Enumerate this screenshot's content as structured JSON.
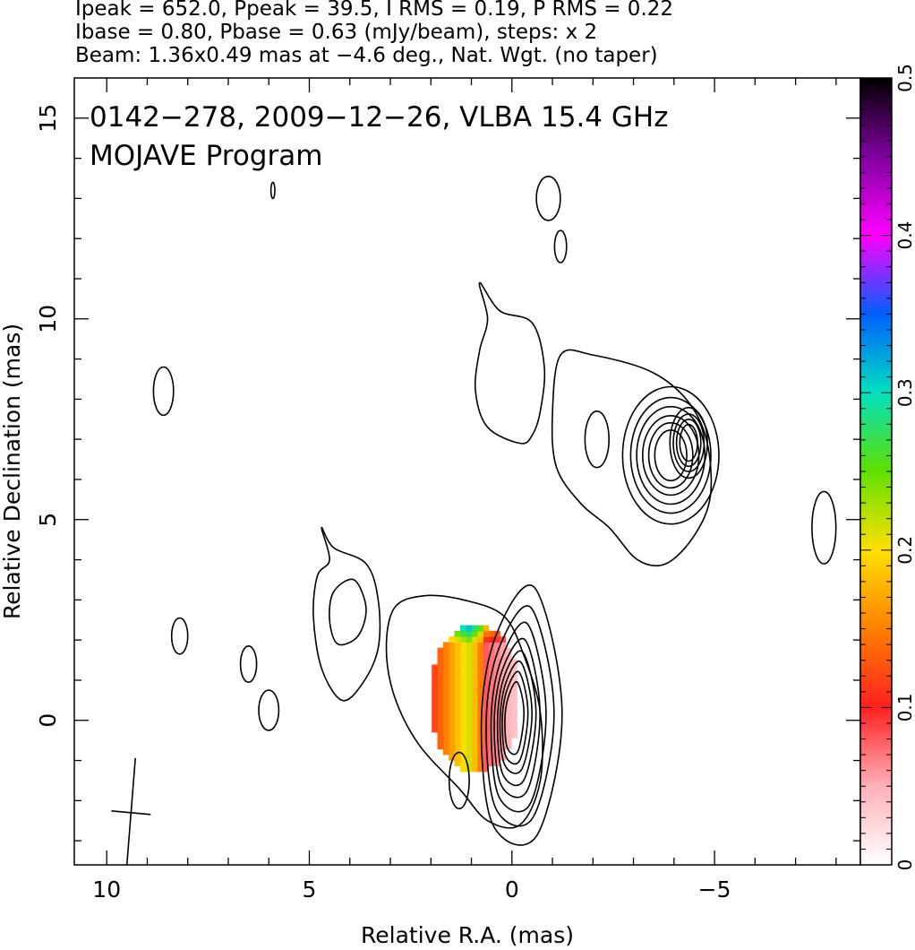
{
  "header": {
    "line1": "Ipeak = 652.0, Ppeak = 39.5, I RMS = 0.19, P RMS = 0.22",
    "line2": "Ibase = 0.80, Pbase = 0.63 (mJy/beam), steps: x 2",
    "line3": "Beam: 1.36x0.49 mas at −4.6 deg., Nat. Wgt. (no taper)"
  },
  "chart_data": {
    "type": "heatmap",
    "title": "0142−278, 2009−12−26, VLBA 15.4 GHz",
    "subtitle": "MOJAVE Program",
    "xlabel": "Relative R.A. (mas)",
    "ylabel": "Relative Declination (mas)",
    "xlim": [
      10.8,
      -8.6
    ],
    "ylim": [
      -3.6,
      16
    ],
    "x_ticks": [
      {
        "value": 10,
        "label": "10"
      },
      {
        "value": 5,
        "label": "5"
      },
      {
        "value": 0,
        "label": "0"
      },
      {
        "value": -5,
        "label": "−5"
      }
    ],
    "y_ticks": [
      {
        "value": 0,
        "label": "0"
      },
      {
        "value": 5,
        "label": "5"
      },
      {
        "value": 10,
        "label": "10"
      },
      {
        "value": 15,
        "label": "15"
      }
    ],
    "colorbar": {
      "range": [
        0,
        0.5
      ],
      "ticks": [
        {
          "value": 0,
          "label": "0"
        },
        {
          "value": 0.1,
          "label": "0.1"
        },
        {
          "value": 0.2,
          "label": "0.2"
        },
        {
          "value": 0.3,
          "label": "0.3"
        },
        {
          "value": 0.4,
          "label": "0.4"
        },
        {
          "value": 0.5,
          "label": "0.5"
        }
      ],
      "colors": [
        "#ffffff",
        "#ffb0b8",
        "#ff2020",
        "#ff8000",
        "#ffe000",
        "#60e000",
        "#00e0c0",
        "#0060ff",
        "#ff00ff",
        "#8000a0",
        "#000000"
      ]
    },
    "core": {
      "x": 0,
      "y": 0,
      "ipeak": 652.0
    },
    "jet_component": {
      "x": -3.7,
      "y": 6.6
    },
    "beam": {
      "major": 1.36,
      "minor": 0.49,
      "pa": -4.6,
      "center_x": 9.4,
      "center_y": -2.3
    },
    "contour_levels": [
      0.8,
      1.6,
      3.2,
      6.4,
      12.8,
      25.6,
      51.2,
      102.4,
      204.8,
      409.6
    ],
    "contours": [
      {
        "name": "core-outer",
        "points": [
          [
            2.9,
            2.8
          ],
          [
            2.2,
            3.1
          ],
          [
            1.2,
            3.0
          ],
          [
            0.2,
            2.6
          ],
          [
            -0.3,
            1.6
          ],
          [
            -0.7,
            0.2
          ],
          [
            -0.7,
            -1.5
          ],
          [
            -0.2,
            -2.6
          ],
          [
            0.6,
            -2.5
          ],
          [
            1.3,
            -1.7
          ],
          [
            2.3,
            -0.6
          ],
          [
            2.9,
            0.6
          ],
          [
            3.1,
            1.8
          ]
        ]
      },
      {
        "name": "west-blob",
        "points": [
          [
            -1.2,
            9.1
          ],
          [
            -2.0,
            9.1
          ],
          [
            -3.4,
            8.7
          ],
          [
            -4.3,
            8.0
          ],
          [
            -4.8,
            7.0
          ],
          [
            -4.9,
            5.6
          ],
          [
            -4.5,
            4.6
          ],
          [
            -3.8,
            3.9
          ],
          [
            -3.1,
            4.0
          ],
          [
            -2.4,
            4.8
          ],
          [
            -1.7,
            5.4
          ],
          [
            -1.1,
            6.3
          ],
          [
            -1.0,
            7.6
          ]
        ]
      },
      {
        "name": "north-lobe",
        "points": [
          [
            0.8,
            10.9
          ],
          [
            0.3,
            10.2
          ],
          [
            -0.5,
            9.9
          ],
          [
            -0.8,
            8.8
          ],
          [
            -0.7,
            7.7
          ],
          [
            -0.5,
            7.1
          ],
          [
            -0.2,
            6.9
          ],
          [
            0.6,
            7.3
          ],
          [
            0.9,
            8.2
          ],
          [
            0.8,
            9.2
          ],
          [
            0.6,
            10.0
          ]
        ]
      },
      {
        "name": "south-lobe",
        "points": [
          [
            4.7,
            4.8
          ],
          [
            4.4,
            4.3
          ],
          [
            3.6,
            3.9
          ],
          [
            3.3,
            3.0
          ],
          [
            3.3,
            1.8
          ],
          [
            3.7,
            0.9
          ],
          [
            4.2,
            0.5
          ],
          [
            4.7,
            1.3
          ],
          [
            4.9,
            2.6
          ],
          [
            4.8,
            3.6
          ],
          [
            4.5,
            4.0
          ]
        ]
      },
      {
        "name": "south-lobe-inner",
        "points": [
          [
            3.9,
            3.5
          ],
          [
            4.4,
            3.2
          ],
          [
            4.5,
            2.5
          ],
          [
            4.3,
            1.9
          ],
          [
            3.8,
            2.1
          ],
          [
            3.6,
            2.8
          ]
        ]
      }
    ],
    "polarization_region": {
      "x_range": [
        2.0,
        -0.05
      ],
      "y_range": [
        -1.2,
        2.4
      ]
    }
  }
}
